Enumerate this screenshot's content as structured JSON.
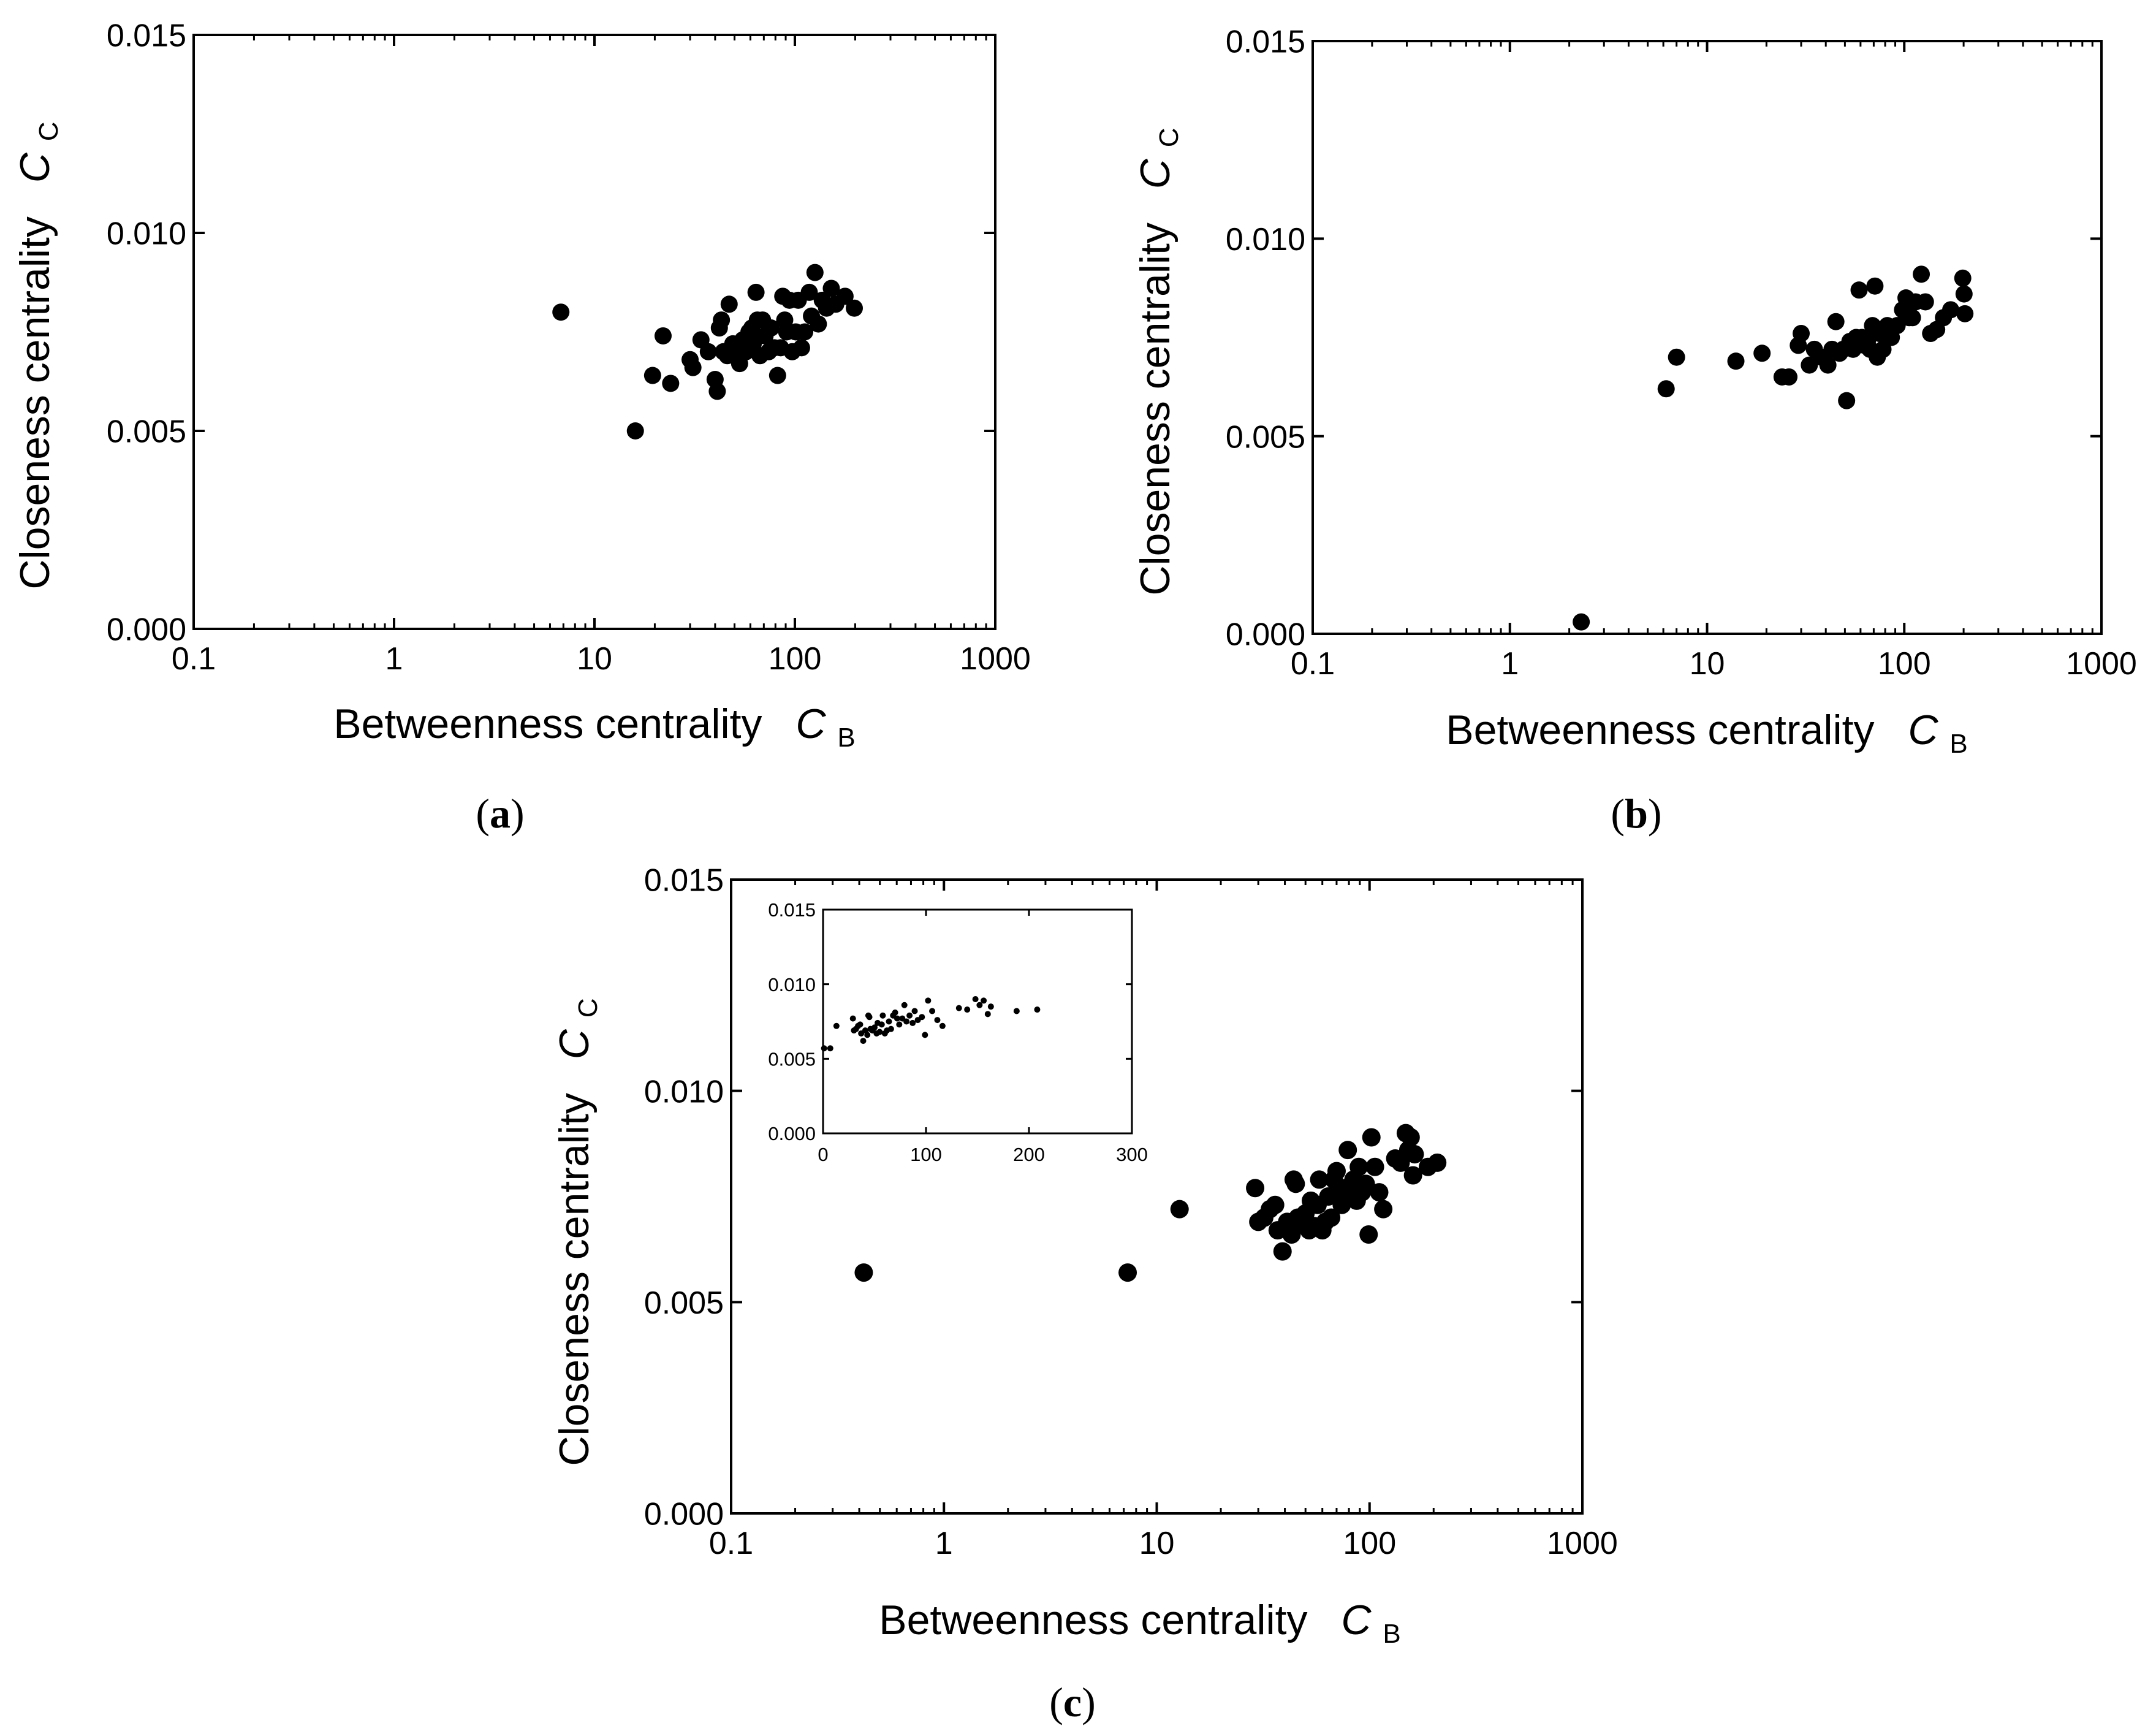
{
  "colors": {
    "background": "#ffffff",
    "ink": "#000000",
    "marker": "#000000"
  },
  "chart_data": [
    {
      "id": "a",
      "type": "scatter",
      "panel_label_open": "(",
      "panel_label_letter": "a",
      "panel_label_close": ")",
      "xlabel": "Betweenness centrality",
      "ylabel": "Closeness centrality",
      "xsymbol": "C",
      "xsymbol_sub": "B",
      "ysymbol": "C",
      "ysymbol_sub": "C",
      "xscale": "log",
      "xlim": [
        0.1,
        1000
      ],
      "ylim": [
        0,
        0.015
      ],
      "xticks": [
        0.1,
        1,
        10,
        100,
        1000
      ],
      "xticklabels": [
        "0.1",
        "1",
        "10",
        "100",
        "1000"
      ],
      "yticks": [
        0,
        0.005,
        0.01,
        0.015
      ],
      "yticklabels": [
        "0.000",
        "0.005",
        "0.010",
        "0.015"
      ],
      "grid": false,
      "points": [
        [
          6.8,
          0.008
        ],
        [
          16,
          0.005
        ],
        [
          19.5,
          0.0064
        ],
        [
          22,
          0.0074
        ],
        [
          24,
          0.0062
        ],
        [
          30,
          0.0068
        ],
        [
          31,
          0.0066
        ],
        [
          34,
          0.0073
        ],
        [
          37,
          0.007
        ],
        [
          40,
          0.0063
        ],
        [
          41,
          0.006
        ],
        [
          42,
          0.0076
        ],
        [
          43,
          0.0078
        ],
        [
          44,
          0.007
        ],
        [
          46,
          0.0069
        ],
        [
          47,
          0.0082
        ],
        [
          49,
          0.0072
        ],
        [
          51,
          0.007
        ],
        [
          53,
          0.0067
        ],
        [
          55,
          0.0073
        ],
        [
          57,
          0.007
        ],
        [
          59,
          0.0075
        ],
        [
          61,
          0.0076
        ],
        [
          62,
          0.0072
        ],
        [
          64,
          0.0085
        ],
        [
          65,
          0.0078
        ],
        [
          67,
          0.0069
        ],
        [
          69,
          0.0078
        ],
        [
          71,
          0.0074
        ],
        [
          74,
          0.007
        ],
        [
          76,
          0.0076
        ],
        [
          79,
          0.0071
        ],
        [
          82,
          0.0064
        ],
        [
          85,
          0.0071
        ],
        [
          87,
          0.0084
        ],
        [
          89,
          0.0078
        ],
        [
          91,
          0.0075
        ],
        [
          94,
          0.0083
        ],
        [
          97,
          0.007
        ],
        [
          101,
          0.0075
        ],
        [
          104,
          0.0083
        ],
        [
          108,
          0.0071
        ],
        [
          112,
          0.0075
        ],
        [
          118,
          0.0085
        ],
        [
          121,
          0.0079
        ],
        [
          126,
          0.009
        ],
        [
          131,
          0.0077
        ],
        [
          137,
          0.0083
        ],
        [
          144,
          0.0081
        ],
        [
          152,
          0.0086
        ],
        [
          160,
          0.0082
        ],
        [
          178,
          0.0084
        ],
        [
          198,
          0.0081
        ]
      ]
    },
    {
      "id": "b",
      "type": "scatter",
      "panel_label_open": "(",
      "panel_label_letter": "b",
      "panel_label_close": ")",
      "xlabel": "Betweenness centrality",
      "ylabel": "Closeness centrality",
      "xsymbol": "C",
      "xsymbol_sub": "B",
      "ysymbol": "C",
      "ysymbol_sub": "C",
      "xscale": "log",
      "xlim": [
        0.1,
        1000
      ],
      "ylim": [
        0,
        0.015
      ],
      "xticks": [
        0.1,
        1,
        10,
        100,
        1000
      ],
      "xticklabels": [
        "0.1",
        "1",
        "10",
        "100",
        "1000"
      ],
      "yticks": [
        0,
        0.005,
        0.01,
        0.015
      ],
      "yticklabels": [
        "0.000",
        "0.005",
        "0.010",
        "0.015"
      ],
      "grid": false,
      "points": [
        [
          2.3,
          0.0003
        ],
        [
          6.2,
          0.0062
        ],
        [
          7.0,
          0.007
        ],
        [
          14,
          0.0069
        ],
        [
          19,
          0.0071
        ],
        [
          24,
          0.0065
        ],
        [
          26,
          0.0065
        ],
        [
          29,
          0.0073
        ],
        [
          30,
          0.0076
        ],
        [
          33,
          0.0068
        ],
        [
          35,
          0.0072
        ],
        [
          38,
          0.007
        ],
        [
          41,
          0.0068
        ],
        [
          43,
          0.0072
        ],
        [
          45,
          0.0079
        ],
        [
          47,
          0.0071
        ],
        [
          49,
          0.0072
        ],
        [
          51,
          0.0059
        ],
        [
          53,
          0.0074
        ],
        [
          55,
          0.0072
        ],
        [
          57,
          0.0075
        ],
        [
          59,
          0.0087
        ],
        [
          61,
          0.0075
        ],
        [
          63,
          0.0073
        ],
        [
          65,
          0.0074
        ],
        [
          67,
          0.0072
        ],
        [
          69,
          0.0078
        ],
        [
          71,
          0.0088
        ],
        [
          73,
          0.007
        ],
        [
          75,
          0.0076
        ],
        [
          78,
          0.0072
        ],
        [
          82,
          0.0078
        ],
        [
          86,
          0.0075
        ],
        [
          92,
          0.0078
        ],
        [
          98,
          0.0082
        ],
        [
          102,
          0.0085
        ],
        [
          106,
          0.008
        ],
        [
          110,
          0.008
        ],
        [
          114,
          0.0084
        ],
        [
          122,
          0.0091
        ],
        [
          128,
          0.0084
        ],
        [
          136,
          0.0076
        ],
        [
          146,
          0.0077
        ],
        [
          158,
          0.008
        ],
        [
          172,
          0.0082
        ],
        [
          198,
          0.009
        ],
        [
          201,
          0.0086
        ],
        [
          203,
          0.0081
        ]
      ]
    },
    {
      "id": "c",
      "type": "scatter",
      "panel_label_open": "(",
      "panel_label_letter": "c",
      "panel_label_close": ")",
      "xlabel": "Betweenness centrality",
      "ylabel": "Closeness centrality",
      "xsymbol": "C",
      "xsymbol_sub": "B",
      "ysymbol": "C",
      "ysymbol_sub": "C",
      "xscale": "log",
      "xlim": [
        0.1,
        1000
      ],
      "ylim": [
        0,
        0.015
      ],
      "xticks": [
        0.1,
        1,
        10,
        100,
        1000
      ],
      "xticklabels": [
        "0.1",
        "1",
        "10",
        "100",
        "1000"
      ],
      "yticks": [
        0,
        0.005,
        0.01,
        0.015
      ],
      "yticklabels": [
        "0.000",
        "0.005",
        "0.010",
        "0.015"
      ],
      "grid": false,
      "points": [
        [
          0.42,
          0.0057
        ],
        [
          7.3,
          0.0057
        ],
        [
          12.8,
          0.0072
        ],
        [
          29,
          0.0077
        ],
        [
          30,
          0.0069
        ],
        [
          32,
          0.007
        ],
        [
          34,
          0.0072
        ],
        [
          36,
          0.0073
        ],
        [
          37,
          0.0067
        ],
        [
          39,
          0.0062
        ],
        [
          41,
          0.0069
        ],
        [
          43,
          0.0066
        ],
        [
          44,
          0.0079
        ],
        [
          45,
          0.0078
        ],
        [
          46,
          0.007
        ],
        [
          48,
          0.0069
        ],
        [
          50,
          0.0071
        ],
        [
          52,
          0.0067
        ],
        [
          53,
          0.0074
        ],
        [
          55,
          0.0068
        ],
        [
          57,
          0.0073
        ],
        [
          58,
          0.0079
        ],
        [
          60,
          0.0067
        ],
        [
          62,
          0.0069
        ],
        [
          64,
          0.0075
        ],
        [
          66,
          0.007
        ],
        [
          68,
          0.0079
        ],
        [
          70,
          0.0081
        ],
        [
          72,
          0.0077
        ],
        [
          74,
          0.0073
        ],
        [
          77,
          0.0077
        ],
        [
          79,
          0.0086
        ],
        [
          81,
          0.0075
        ],
        [
          84,
          0.0079
        ],
        [
          87,
          0.0074
        ],
        [
          89,
          0.0082
        ],
        [
          92,
          0.0076
        ],
        [
          96,
          0.0078
        ],
        [
          99,
          0.0066
        ],
        [
          102,
          0.0089
        ],
        [
          106,
          0.0082
        ],
        [
          111,
          0.0076
        ],
        [
          116,
          0.0072
        ],
        [
          132,
          0.0084
        ],
        [
          140,
          0.0083
        ],
        [
          148,
          0.009
        ],
        [
          152,
          0.0086
        ],
        [
          156,
          0.0089
        ],
        [
          160,
          0.008
        ],
        [
          163,
          0.0085
        ],
        [
          188,
          0.0082
        ],
        [
          208,
          0.0083
        ]
      ],
      "inset": {
        "type": "scatter",
        "xscale": "linear",
        "xlim": [
          0,
          300
        ],
        "ylim": [
          0,
          0.015
        ],
        "xticks": [
          0,
          100,
          200,
          300
        ],
        "xticklabels": [
          "0",
          "100",
          "200",
          "300"
        ],
        "yticks": [
          0,
          0.005,
          0.01,
          0.015
        ],
        "yticklabels": [
          "0.000",
          "0.005",
          "0.010",
          "0.015"
        ],
        "grid": false,
        "points": [
          [
            1,
            0.0057
          ],
          [
            7,
            0.0057
          ],
          [
            13,
            0.0072
          ],
          [
            29,
            0.0077
          ],
          [
            30,
            0.0069
          ],
          [
            32,
            0.007
          ],
          [
            34,
            0.0072
          ],
          [
            36,
            0.0073
          ],
          [
            37,
            0.0067
          ],
          [
            39,
            0.0062
          ],
          [
            41,
            0.0069
          ],
          [
            43,
            0.0066
          ],
          [
            44,
            0.0079
          ],
          [
            45,
            0.0078
          ],
          [
            46,
            0.007
          ],
          [
            48,
            0.0069
          ],
          [
            50,
            0.0071
          ],
          [
            52,
            0.0067
          ],
          [
            53,
            0.0074
          ],
          [
            55,
            0.0068
          ],
          [
            57,
            0.0073
          ],
          [
            58,
            0.0079
          ],
          [
            60,
            0.0067
          ],
          [
            62,
            0.0069
          ],
          [
            64,
            0.0075
          ],
          [
            66,
            0.007
          ],
          [
            68,
            0.0079
          ],
          [
            70,
            0.0081
          ],
          [
            72,
            0.0077
          ],
          [
            74,
            0.0073
          ],
          [
            77,
            0.0077
          ],
          [
            79,
            0.0086
          ],
          [
            81,
            0.0075
          ],
          [
            84,
            0.0079
          ],
          [
            87,
            0.0074
          ],
          [
            89,
            0.0082
          ],
          [
            92,
            0.0076
          ],
          [
            96,
            0.0078
          ],
          [
            99,
            0.0066
          ],
          [
            102,
            0.0089
          ],
          [
            106,
            0.0082
          ],
          [
            111,
            0.0076
          ],
          [
            116,
            0.0072
          ],
          [
            132,
            0.0084
          ],
          [
            140,
            0.0083
          ],
          [
            148,
            0.009
          ],
          [
            152,
            0.0086
          ],
          [
            156,
            0.0089
          ],
          [
            160,
            0.008
          ],
          [
            163,
            0.0085
          ],
          [
            188,
            0.0082
          ],
          [
            208,
            0.0083
          ]
        ]
      }
    }
  ]
}
